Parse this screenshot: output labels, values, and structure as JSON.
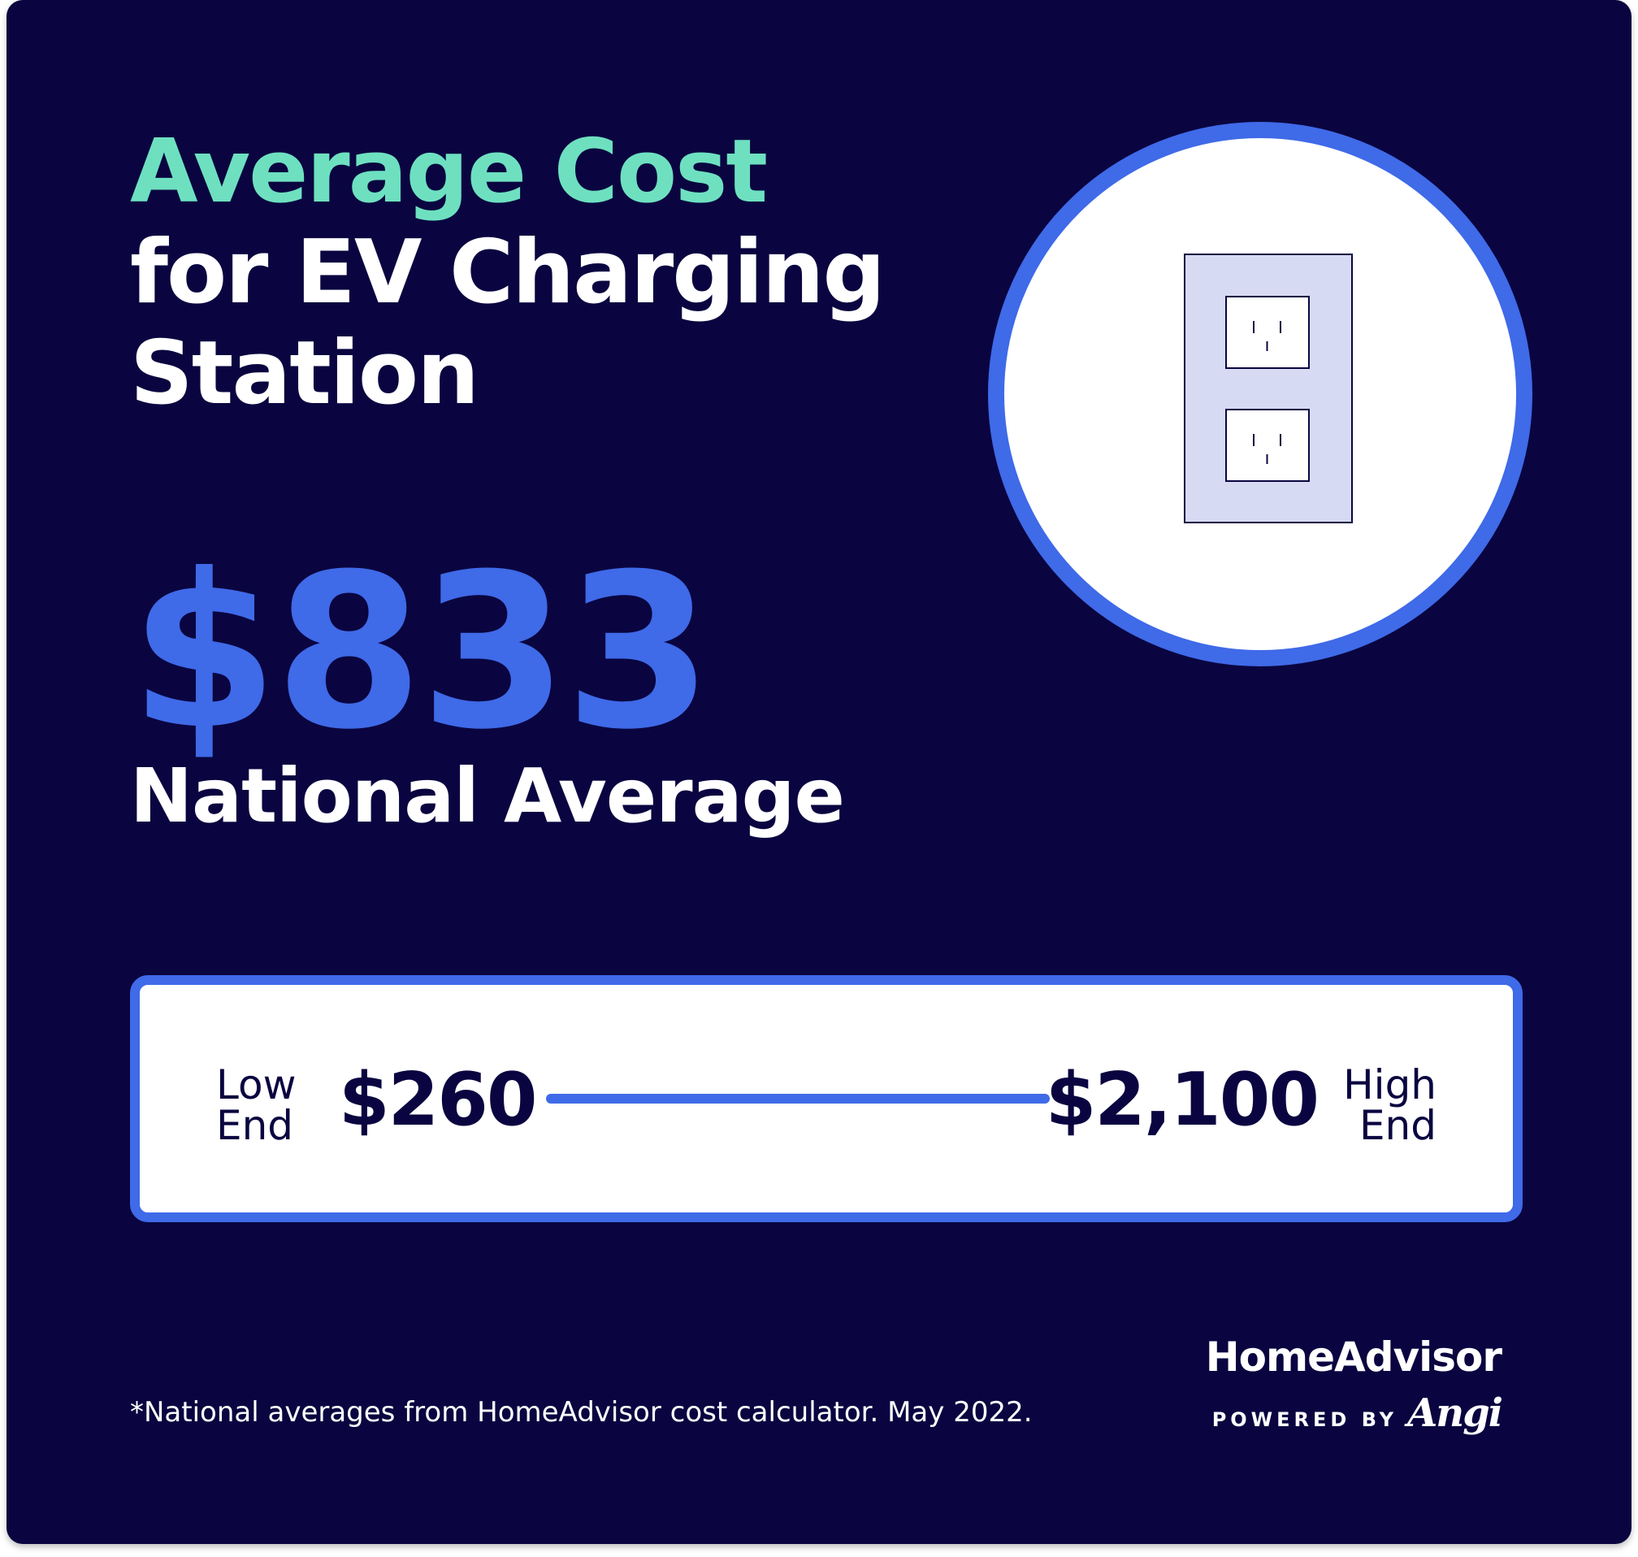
{
  "title": {
    "line1": "Average Cost",
    "line2": "for EV Charging",
    "line3": "Station"
  },
  "average": {
    "value": "$833",
    "label": "National Average"
  },
  "range": {
    "low_label_1": "Low",
    "low_label_2": "End",
    "low_value": "$260",
    "high_value": "$2,100",
    "high_label_1": "High",
    "high_label_2": "End"
  },
  "footnote": "*National averages from HomeAdvisor cost calculator. May 2022.",
  "brand": {
    "name": "HomeAdvisor",
    "powered_by": "POWERED BY",
    "partner": "Angi"
  },
  "colors": {
    "background": "#0a0540",
    "accent_teal": "#6ee0c0",
    "accent_blue": "#3f6ae8",
    "text_white": "#ffffff"
  },
  "icons": [
    "wall-outlet-icon"
  ]
}
